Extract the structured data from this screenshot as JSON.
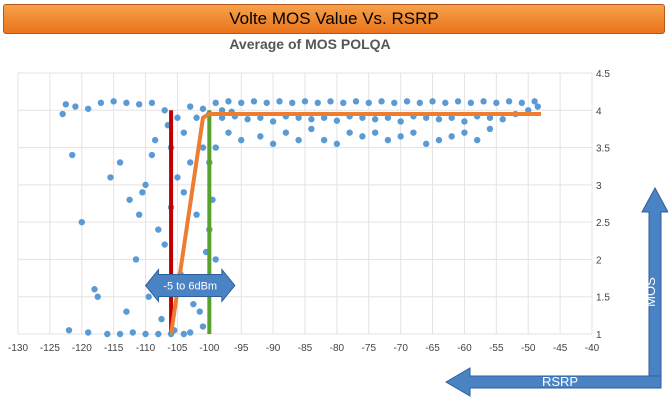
{
  "banner": {
    "title": "Volte MOS Value Vs. RSRP"
  },
  "chart_data": {
    "type": "scatter",
    "title": "Average of MOS POLQA",
    "xlabel": "",
    "ylabel": "",
    "xlim": [
      -130,
      -40
    ],
    "ylim": [
      1,
      4.5
    ],
    "x_ticks": [
      "-130",
      "-125",
      "-120",
      "-115",
      "-110",
      "-105",
      "-100",
      "-95",
      "-90",
      "-85",
      "-80",
      "-75",
      "-70",
      "-65",
      "-60",
      "-55",
      "-50",
      "-45",
      "-40"
    ],
    "y_ticks": [
      "1",
      "1.5",
      "2",
      "2.5",
      "3",
      "3.5",
      "4",
      "4.5"
    ],
    "grid": true,
    "axis_position": "right",
    "series": [
      {
        "points": [
          [
            -122.5,
            4.08
          ],
          [
            -121,
            4.05
          ],
          [
            -119,
            4.02
          ],
          [
            -117,
            4.1
          ],
          [
            -115,
            4.12
          ],
          [
            -113,
            4.1
          ],
          [
            -111,
            4.08
          ],
          [
            -109,
            4.1
          ],
          [
            -123,
            3.95
          ],
          [
            -121.5,
            3.4
          ],
          [
            -120,
            2.5
          ],
          [
            -118,
            1.6
          ],
          [
            -117.5,
            1.5
          ],
          [
            -122,
            1.05
          ],
          [
            -119,
            1.02
          ],
          [
            -116,
            1.0
          ],
          [
            -114,
            1.0
          ],
          [
            -112,
            1.02
          ],
          [
            -110,
            1.0
          ],
          [
            -108,
            1.0
          ],
          [
            -106,
            1.0
          ],
          [
            -104,
            1.0
          ],
          [
            -115.5,
            3.1
          ],
          [
            -114,
            3.3
          ],
          [
            -112.5,
            2.8
          ],
          [
            -111,
            2.6
          ],
          [
            -110,
            3.0
          ],
          [
            -109,
            3.4
          ],
          [
            -108,
            2.4
          ],
          [
            -107,
            2.2
          ],
          [
            -106,
            2.7
          ],
          [
            -105,
            3.1
          ],
          [
            -104,
            2.9
          ],
          [
            -103,
            3.3
          ],
          [
            -102,
            2.6
          ],
          [
            -101,
            3.5
          ],
          [
            -100.5,
            2.1
          ],
          [
            -104.5,
            1.8
          ],
          [
            -103.5,
            1.6
          ],
          [
            -102.5,
            1.4
          ],
          [
            -101.5,
            1.3
          ],
          [
            -107.5,
            1.2
          ],
          [
            -109.5,
            1.5
          ],
          [
            -113,
            1.3
          ],
          [
            -111.5,
            2.0
          ],
          [
            -110.5,
            2.9
          ],
          [
            -108.5,
            3.6
          ],
          [
            -106.5,
            3.8
          ],
          [
            -104,
            3.7
          ],
          [
            -102,
            3.9
          ],
          [
            -100,
            3.95
          ],
          [
            -98,
            3.9
          ],
          [
            -96,
            3.92
          ],
          [
            -94,
            3.88
          ],
          [
            -92,
            3.9
          ],
          [
            -90,
            3.85
          ],
          [
            -88,
            3.92
          ],
          [
            -86,
            3.9
          ],
          [
            -84,
            3.88
          ],
          [
            -82,
            3.9
          ],
          [
            -80,
            3.86
          ],
          [
            -78,
            3.92
          ],
          [
            -76,
            3.9
          ],
          [
            -74,
            3.88
          ],
          [
            -72,
            3.9
          ],
          [
            -70,
            3.85
          ],
          [
            -68,
            3.92
          ],
          [
            -66,
            3.9
          ],
          [
            -64,
            3.88
          ],
          [
            -62,
            3.9
          ],
          [
            -60,
            3.85
          ],
          [
            -58,
            3.92
          ],
          [
            -56,
            3.9
          ],
          [
            -54,
            3.88
          ],
          [
            -52,
            3.95
          ],
          [
            -50,
            4.0
          ],
          [
            -48.5,
            4.05
          ],
          [
            -99,
            4.1
          ],
          [
            -97,
            4.12
          ],
          [
            -95,
            4.1
          ],
          [
            -93,
            4.12
          ],
          [
            -91,
            4.1
          ],
          [
            -89,
            4.12
          ],
          [
            -87,
            4.1
          ],
          [
            -85,
            4.12
          ],
          [
            -83,
            4.1
          ],
          [
            -81,
            4.12
          ],
          [
            -79,
            4.1
          ],
          [
            -77,
            4.12
          ],
          [
            -75,
            4.1
          ],
          [
            -73,
            4.12
          ],
          [
            -71,
            4.1
          ],
          [
            -69,
            4.12
          ],
          [
            -67,
            4.1
          ],
          [
            -65,
            4.12
          ],
          [
            -63,
            4.1
          ],
          [
            -61,
            4.12
          ],
          [
            -59,
            4.1
          ],
          [
            -57,
            4.12
          ],
          [
            -55,
            4.1
          ],
          [
            -53,
            4.12
          ],
          [
            -51,
            4.1
          ],
          [
            -49,
            4.12
          ],
          [
            -97,
            3.7
          ],
          [
            -95,
            3.6
          ],
          [
            -92,
            3.65
          ],
          [
            -90,
            3.55
          ],
          [
            -88,
            3.7
          ],
          [
            -86,
            3.6
          ],
          [
            -84,
            3.75
          ],
          [
            -82,
            3.6
          ],
          [
            -80,
            3.55
          ],
          [
            -78,
            3.7
          ],
          [
            -76,
            3.65
          ],
          [
            -74,
            3.7
          ],
          [
            -72,
            3.6
          ],
          [
            -70,
            3.65
          ],
          [
            -68,
            3.7
          ],
          [
            -66,
            3.55
          ],
          [
            -64,
            3.6
          ],
          [
            -62,
            3.65
          ],
          [
            -60,
            3.7
          ],
          [
            -58,
            3.6
          ],
          [
            -56,
            3.75
          ],
          [
            -99,
            3.5
          ],
          [
            -100,
            3.3
          ],
          [
            -99.5,
            2.8
          ],
          [
            -100,
            2.4
          ],
          [
            -99,
            2.0
          ],
          [
            -100.5,
            1.6
          ],
          [
            -101,
            1.1
          ],
          [
            -105.5,
            1.05
          ],
          [
            -103,
            1.02
          ],
          [
            -106,
            3.5
          ],
          [
            -105,
            3.9
          ],
          [
            -107,
            4.0
          ],
          [
            -103,
            4.05
          ],
          [
            -101,
            4.02
          ],
          [
            -98,
            4.0
          ],
          [
            -96.5,
            3.98
          ]
        ]
      }
    ],
    "trend_lines": [
      {
        "color": "#c00000",
        "x": [
          -106,
          -106
        ],
        "y": [
          1,
          4.0
        ]
      },
      {
        "color": "#5aa02c",
        "x": [
          -100,
          -100
        ],
        "y": [
          1,
          4.0
        ]
      },
      {
        "color": "#ed7d31",
        "x": [
          -106,
          -101,
          -100,
          -48
        ],
        "y": [
          1,
          3.9,
          3.95,
          3.95
        ]
      }
    ],
    "annotations": [
      {
        "text": "-5 to 6dBm",
        "type": "double-arrow",
        "x_from": -110,
        "x_to": -96,
        "y": 1.65
      }
    ],
    "colors": {
      "points": "#5b9bd5",
      "arrow": "#4a83c4"
    }
  },
  "arrows": {
    "x_label": "RSRP",
    "y_label": "MOS"
  }
}
